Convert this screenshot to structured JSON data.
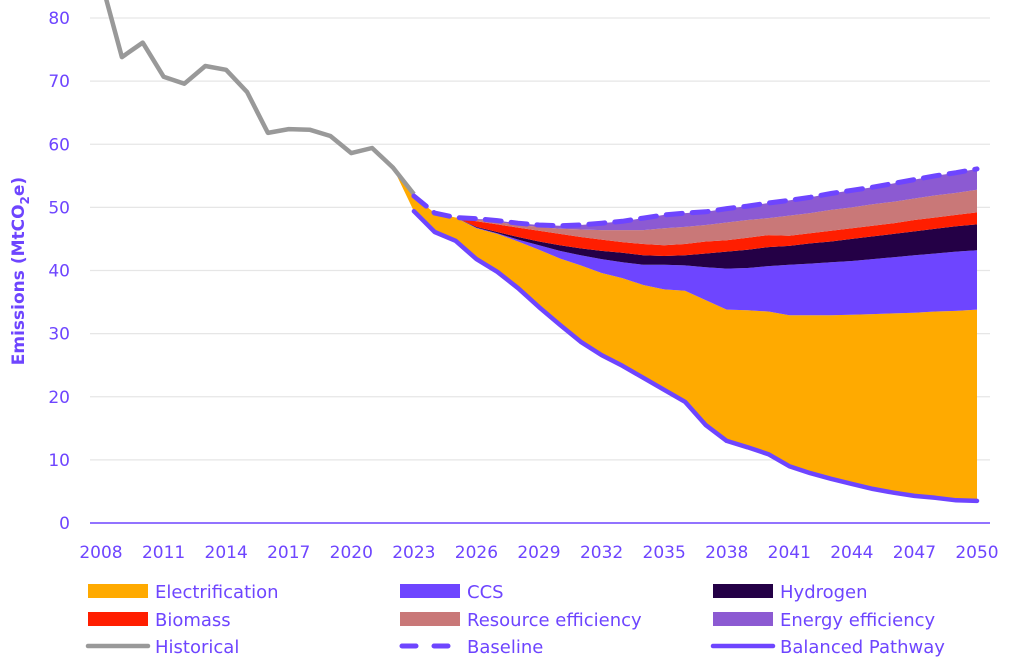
{
  "chart_data": {
    "type": "area",
    "title": "",
    "xlabel": "",
    "ylabel": "Emissions (MtCO2e)",
    "ylabel_parts": {
      "main": "Emissions (MtCO",
      "sub": "2",
      "tail": "e)"
    },
    "ylim": [
      0,
      80
    ],
    "yticks": [
      0,
      10,
      20,
      30,
      40,
      50,
      60,
      70,
      80
    ],
    "xlim": [
      2008,
      2050
    ],
    "xticks": [
      2008,
      2011,
      2014,
      2017,
      2020,
      2023,
      2026,
      2029,
      2032,
      2035,
      2038,
      2041,
      2044,
      2047,
      2050
    ],
    "grid": "horizontal",
    "legend_position": "bottom",
    "colors": {
      "axis_text": "#6E45FF",
      "grid": "#E6E6E6",
      "axis_line": "#6E45FF",
      "Electrification": "#FFAA00",
      "CCS": "#6E45FF",
      "Hydrogen": "#240046",
      "Biomass": "#FF1E00",
      "Resource efficiency": "#C97878",
      "Energy efficiency": "#8C5AD2",
      "Historical": "#999999",
      "Baseline": "#6E45FF",
      "Balanced Pathway": "#6E45FF"
    },
    "historical": {
      "name": "Historical",
      "x": [
        2008,
        2009,
        2010,
        2011,
        2012,
        2013,
        2014,
        2015,
        2016,
        2017,
        2018,
        2019,
        2020,
        2021,
        2022,
        2023
      ],
      "values": [
        86.0,
        73.8,
        76.1,
        70.7,
        69.6,
        72.4,
        71.8,
        68.3,
        61.8,
        62.4,
        62.3,
        61.3,
        58.6,
        59.4,
        56.3,
        52.1
      ]
    },
    "projection_x": [
      2022,
      2023,
      2024,
      2025,
      2026,
      2027,
      2028,
      2029,
      2030,
      2031,
      2032,
      2033,
      2034,
      2035,
      2036,
      2037,
      2038,
      2039,
      2040,
      2041,
      2042,
      2043,
      2044,
      2045,
      2046,
      2047,
      2048,
      2049,
      2050
    ],
    "balanced_pathway": {
      "name": "Balanced Pathway",
      "values": [
        56.3,
        49.4,
        46.1,
        44.7,
        41.8,
        39.8,
        37.2,
        34.2,
        31.4,
        28.7,
        26.6,
        24.9,
        23.0,
        21.1,
        19.2,
        15.5,
        13.0,
        12.0,
        10.9,
        9.0,
        7.9,
        7.0,
        6.2,
        5.4,
        4.8,
        4.3,
        4.0,
        3.6,
        3.5
      ]
    },
    "baseline": {
      "name": "Baseline",
      "values": [
        56.3,
        51.8,
        49.1,
        48.4,
        48.2,
        47.9,
        47.5,
        47.2,
        47.1,
        47.2,
        47.5,
        47.8,
        48.3,
        48.8,
        49.1,
        49.3,
        49.8,
        50.2,
        50.7,
        51.1,
        51.6,
        52.2,
        52.7,
        53.2,
        53.8,
        54.4,
        55.0,
        55.5,
        56.1
      ]
    },
    "stack_tops_note": "Cumulative upper boundary of each wedge, stacked on the Balanced Pathway (MtCO2e)",
    "wedges": [
      {
        "name": "Electrification",
        "top": [
          56.3,
          51.8,
          49.1,
          48.4,
          46.7,
          45.8,
          44.6,
          43.3,
          41.9,
          40.8,
          39.6,
          38.8,
          37.7,
          37.0,
          36.8,
          35.3,
          33.8,
          33.7,
          33.5,
          32.9,
          32.9,
          32.9,
          33.0,
          33.1,
          33.2,
          33.3,
          33.5,
          33.6,
          33.8
        ]
      },
      {
        "name": "CCS",
        "top": [
          56.3,
          51.8,
          49.1,
          48.4,
          46.8,
          45.9,
          44.9,
          44.0,
          43.1,
          42.4,
          41.8,
          41.3,
          40.9,
          40.9,
          40.8,
          40.5,
          40.3,
          40.4,
          40.7,
          40.9,
          41.1,
          41.3,
          41.5,
          41.8,
          42.1,
          42.4,
          42.7,
          43.0,
          43.2
        ]
      },
      {
        "name": "Hydrogen",
        "top": [
          56.3,
          51.8,
          49.1,
          48.4,
          46.9,
          46.1,
          45.3,
          44.6,
          44.0,
          43.5,
          43.1,
          42.8,
          42.4,
          42.3,
          42.4,
          42.7,
          43.0,
          43.3,
          43.7,
          43.9,
          44.3,
          44.6,
          45.0,
          45.4,
          45.8,
          46.2,
          46.6,
          47.0,
          47.3
        ]
      },
      {
        "name": "Biomass",
        "top": [
          56.3,
          51.8,
          49.1,
          48.4,
          47.8,
          47.3,
          46.8,
          46.3,
          45.8,
          45.3,
          44.9,
          44.5,
          44.2,
          44.0,
          44.2,
          44.6,
          44.8,
          45.2,
          45.6,
          45.5,
          45.9,
          46.3,
          46.7,
          47.1,
          47.5,
          48.0,
          48.4,
          48.8,
          49.2
        ]
      },
      {
        "name": "Resource efficiency",
        "top": [
          56.3,
          51.8,
          49.1,
          48.4,
          48.1,
          47.7,
          47.2,
          46.9,
          46.6,
          46.5,
          46.4,
          46.4,
          46.4,
          46.7,
          46.9,
          47.2,
          47.6,
          48.0,
          48.3,
          48.7,
          49.1,
          49.6,
          50.0,
          50.5,
          50.9,
          51.4,
          51.9,
          52.3,
          52.8
        ]
      },
      {
        "name": "Energy efficiency",
        "top": [
          56.3,
          51.8,
          49.1,
          48.4,
          48.2,
          47.9,
          47.5,
          47.2,
          47.1,
          47.2,
          47.5,
          47.8,
          48.3,
          48.8,
          49.1,
          49.3,
          49.8,
          50.2,
          50.7,
          51.1,
          51.6,
          52.2,
          52.7,
          53.2,
          53.8,
          54.4,
          55.0,
          55.5,
          56.1
        ]
      }
    ],
    "legend": [
      {
        "label": "Electrification",
        "kind": "box"
      },
      {
        "label": "CCS",
        "kind": "box"
      },
      {
        "label": "Hydrogen",
        "kind": "box"
      },
      {
        "label": "Biomass",
        "kind": "box"
      },
      {
        "label": "Resource efficiency",
        "kind": "box"
      },
      {
        "label": "Energy efficiency",
        "kind": "box"
      },
      {
        "label": "Historical",
        "kind": "line"
      },
      {
        "label": "Baseline",
        "kind": "dash"
      },
      {
        "label": "Balanced Pathway",
        "kind": "line"
      }
    ]
  }
}
